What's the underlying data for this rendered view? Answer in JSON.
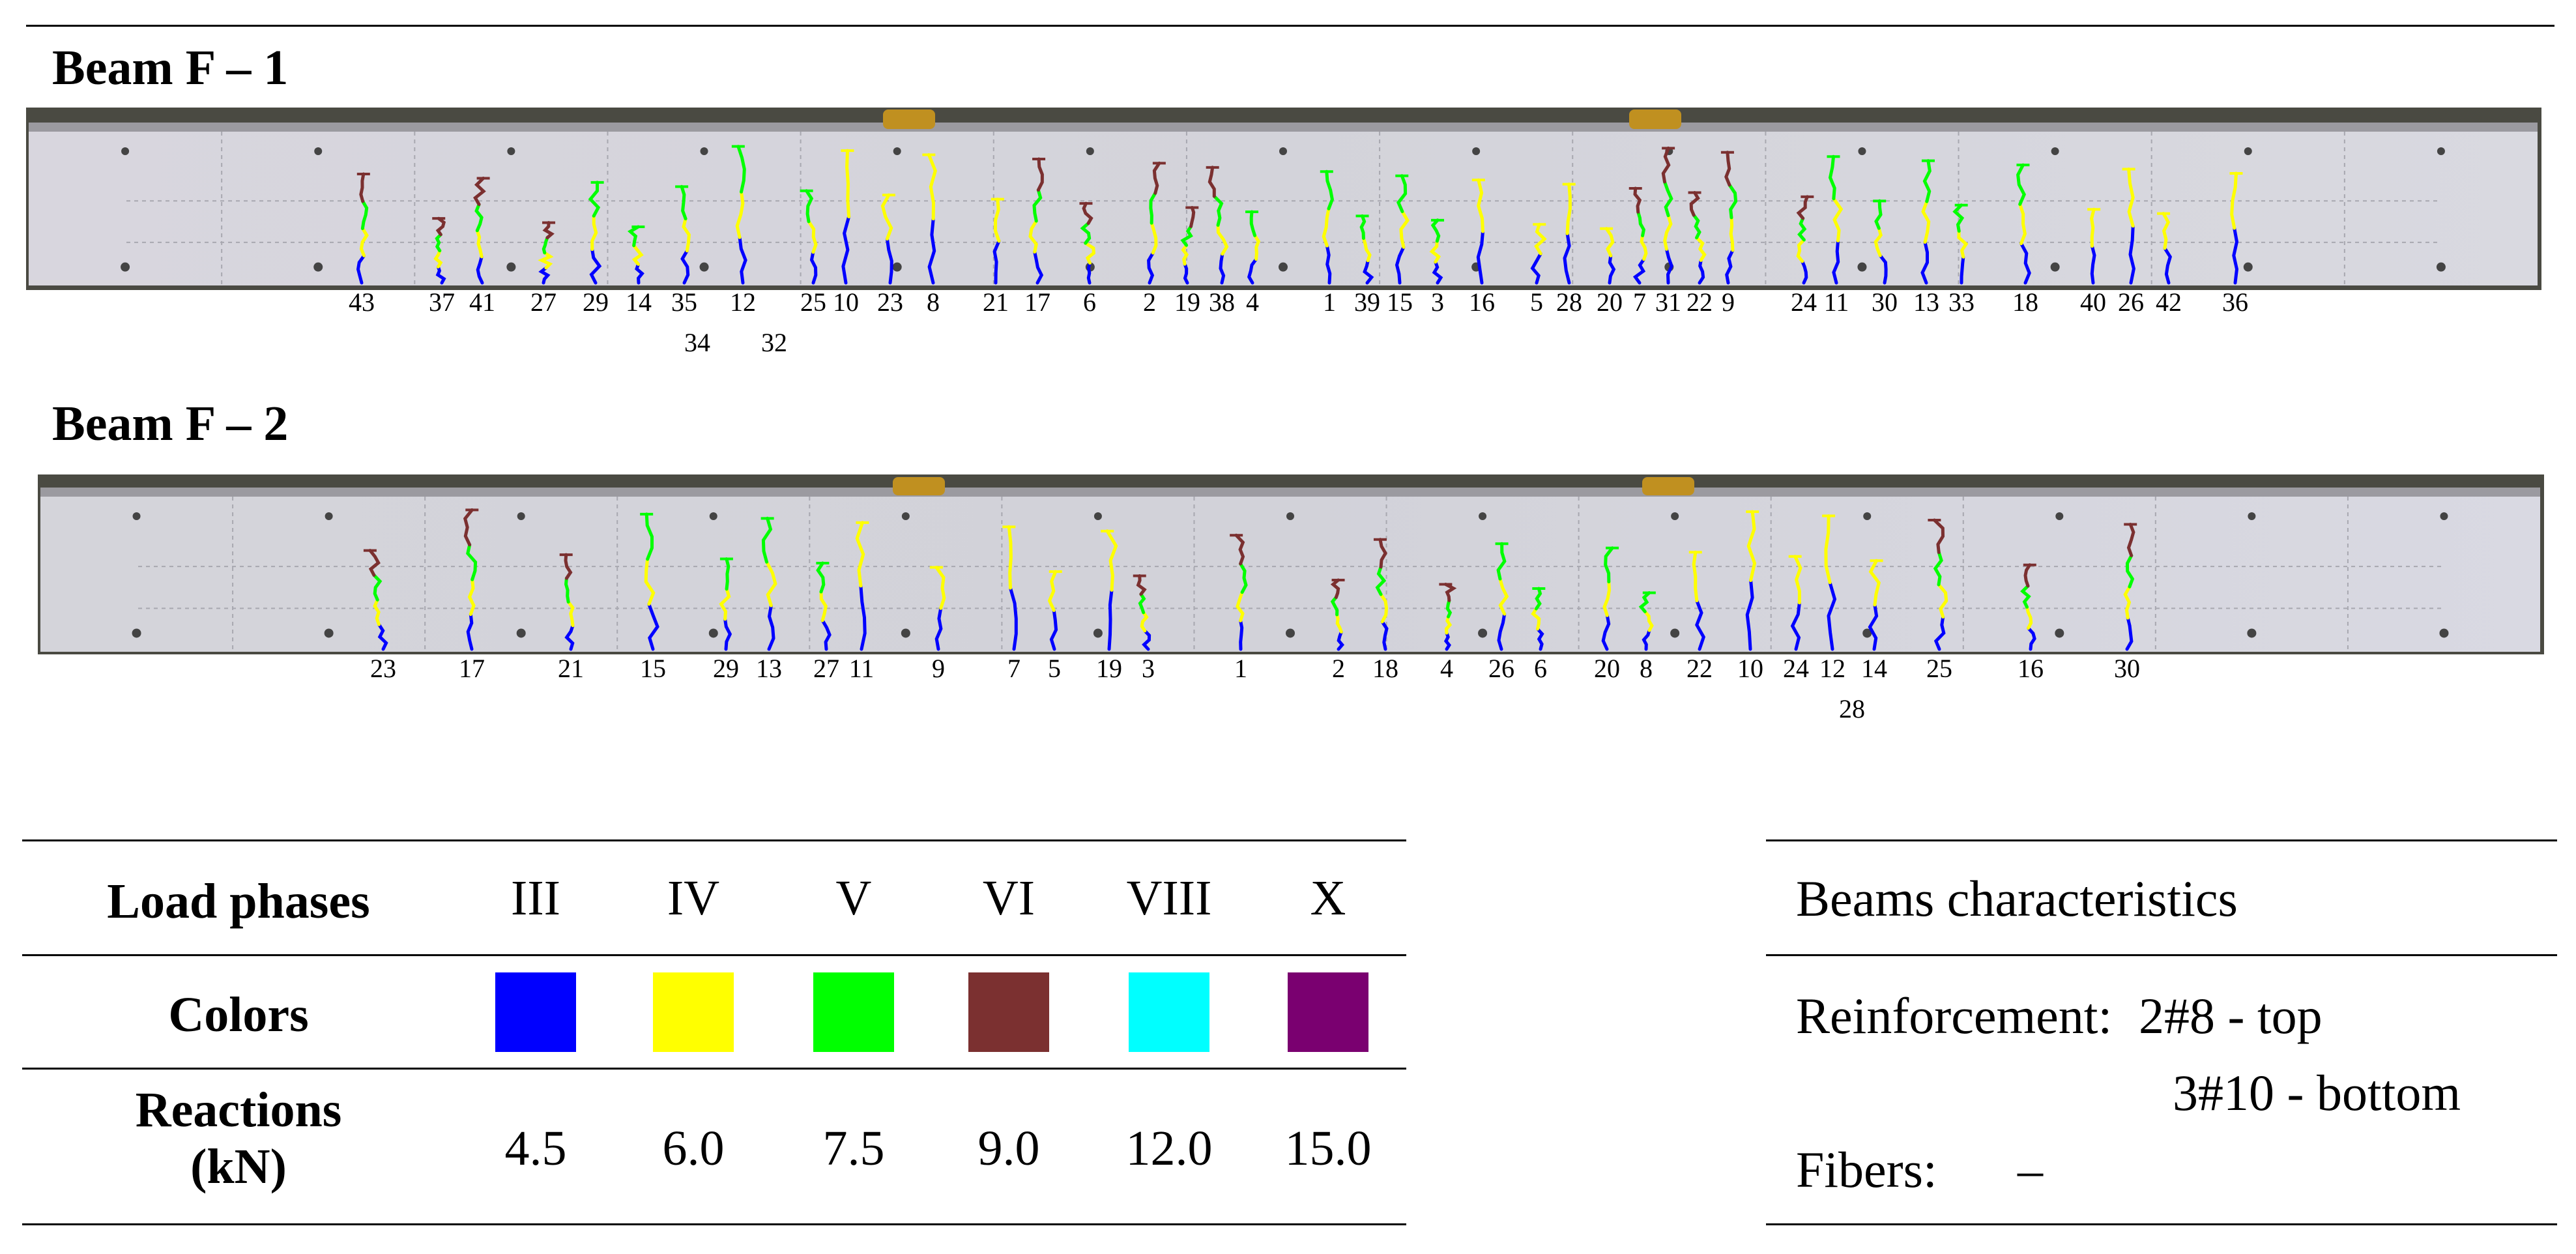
{
  "beams": [
    {
      "title": "Beam F – 1",
      "crack_labels_row1": [
        "43",
        "37",
        "41",
        "27",
        "29",
        "14",
        "35",
        "12",
        "25",
        "10",
        "23",
        "8",
        "21",
        "17",
        "6",
        "2",
        "19",
        "38",
        "4",
        "1",
        "39",
        "15",
        "3",
        "16",
        "5",
        "28",
        "20",
        "7",
        "31",
        "22",
        "9",
        "24",
        "11",
        "30",
        "13",
        "33",
        "18",
        "40",
        "26",
        "42",
        "36"
      ],
      "crack_labels_row2": [
        "34",
        "32"
      ]
    },
    {
      "title": "Beam F – 2",
      "crack_labels_row1": [
        "23",
        "17",
        "21",
        "15",
        "29",
        "13",
        "27",
        "11",
        "9",
        "7",
        "5",
        "19",
        "3",
        "1",
        "2",
        "18",
        "4",
        "26",
        "6",
        "20",
        "8",
        "22",
        "10",
        "24",
        "12",
        "14",
        "25",
        "16",
        "30"
      ],
      "crack_labels_row2": [
        "28"
      ]
    }
  ],
  "legend": {
    "row_labels": {
      "phases": "Load phases",
      "colors": "Colors",
      "reactions_line1": "Reactions",
      "reactions_line2": "(kN)"
    },
    "phases": [
      {
        "name": "III",
        "color": "#0000ff",
        "reaction": "4.5"
      },
      {
        "name": "IV",
        "color": "#ffff00",
        "reaction": "6.0"
      },
      {
        "name": "V",
        "color": "#00ff00",
        "reaction": "7.5"
      },
      {
        "name": "VI",
        "color": "#7b3030",
        "reaction": "9.0"
      },
      {
        "name": "VIII",
        "color": "#00ffff",
        "reaction": "12.0"
      },
      {
        "name": "X",
        "color": "#7a0070",
        "reaction": "15.0"
      }
    ]
  },
  "characteristics": {
    "title": "Beams characteristics",
    "reinforcement_label": "Reinforcement:",
    "reinforcement_top": "2#8 - top",
    "reinforcement_bottom": "3#10 - bottom",
    "fibers_label": "Fibers:",
    "fibers_value": "–"
  }
}
